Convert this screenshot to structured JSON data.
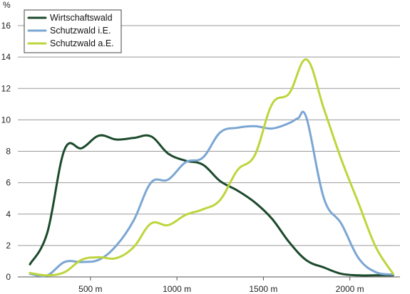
{
  "chart_data": {
    "type": "line",
    "title": "",
    "xlabel": "",
    "ylabel": "",
    "y_unit_label": "%",
    "xlim": [
      80,
      2290
    ],
    "ylim": [
      0,
      17
    ],
    "x_ticks": [
      {
        "value": 500,
        "label": "500 m"
      },
      {
        "value": 1000,
        "label": "1000 m"
      },
      {
        "value": 1500,
        "label": "1500 m"
      },
      {
        "value": 2000,
        "label": "2000 m"
      }
    ],
    "y_ticks": [
      {
        "value": 0,
        "label": "0"
      },
      {
        "value": 2,
        "label": "2"
      },
      {
        "value": 4,
        "label": "4"
      },
      {
        "value": 6,
        "label": "6"
      },
      {
        "value": 8,
        "label": "8"
      },
      {
        "value": 10,
        "label": "10"
      },
      {
        "value": 12,
        "label": "12"
      },
      {
        "value": 14,
        "label": "14"
      },
      {
        "value": 16,
        "label": "16"
      }
    ],
    "grid": "horizontal",
    "legend_position": "top-left",
    "series": [
      {
        "name": "Wirtschaftswald",
        "color": "#1c4a2c",
        "points": [
          [
            150,
            0.8
          ],
          [
            250,
            2.8
          ],
          [
            350,
            8.1
          ],
          [
            450,
            8.2
          ],
          [
            550,
            9.0
          ],
          [
            650,
            8.75
          ],
          [
            750,
            8.85
          ],
          [
            850,
            8.95
          ],
          [
            950,
            7.85
          ],
          [
            1050,
            7.4
          ],
          [
            1150,
            7.15
          ],
          [
            1250,
            6.1
          ],
          [
            1350,
            5.5
          ],
          [
            1450,
            4.75
          ],
          [
            1550,
            3.7
          ],
          [
            1650,
            2.2
          ],
          [
            1750,
            1.05
          ],
          [
            1850,
            0.6
          ],
          [
            1950,
            0.2
          ],
          [
            2050,
            0.1
          ],
          [
            2150,
            0.1
          ],
          [
            2250,
            0.1
          ]
        ]
      },
      {
        "name": "Schutzwald i.E.",
        "color": "#7ba6d3",
        "points": [
          [
            150,
            0.2
          ],
          [
            250,
            0.1
          ],
          [
            350,
            0.95
          ],
          [
            450,
            0.95
          ],
          [
            550,
            1.1
          ],
          [
            650,
            2.0
          ],
          [
            750,
            3.6
          ],
          [
            850,
            6.0
          ],
          [
            950,
            6.2
          ],
          [
            1050,
            7.3
          ],
          [
            1150,
            7.6
          ],
          [
            1250,
            9.2
          ],
          [
            1350,
            9.5
          ],
          [
            1450,
            9.6
          ],
          [
            1550,
            9.45
          ],
          [
            1650,
            9.8
          ],
          [
            1700,
            10.1
          ],
          [
            1750,
            10.1
          ],
          [
            1850,
            5.0
          ],
          [
            1950,
            3.4
          ],
          [
            2050,
            1.2
          ],
          [
            2150,
            0.3
          ],
          [
            2250,
            0.15
          ]
        ]
      },
      {
        "name": "Schutzwald a.E.",
        "color": "#bed53c",
        "points": [
          [
            150,
            0.25
          ],
          [
            250,
            0.1
          ],
          [
            350,
            0.3
          ],
          [
            450,
            1.1
          ],
          [
            550,
            1.25
          ],
          [
            650,
            1.2
          ],
          [
            750,
            1.9
          ],
          [
            850,
            3.4
          ],
          [
            950,
            3.3
          ],
          [
            1050,
            3.95
          ],
          [
            1150,
            4.3
          ],
          [
            1250,
            4.9
          ],
          [
            1350,
            6.8
          ],
          [
            1450,
            7.75
          ],
          [
            1550,
            11.0
          ],
          [
            1650,
            11.7
          ],
          [
            1750,
            13.85
          ],
          [
            1850,
            10.7
          ],
          [
            1950,
            7.5
          ],
          [
            2050,
            4.7
          ],
          [
            2150,
            1.9
          ],
          [
            2250,
            0.2
          ]
        ]
      }
    ]
  }
}
